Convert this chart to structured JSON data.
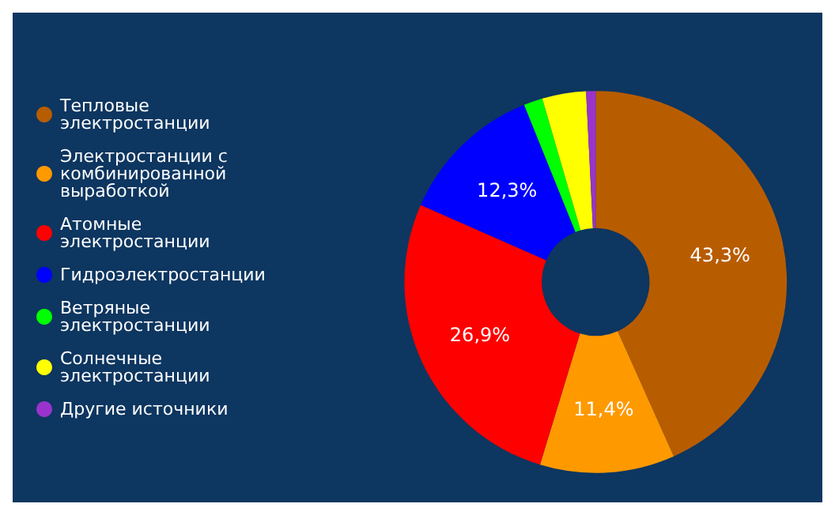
{
  "chart_data": {
    "type": "donut",
    "categories": [
      "Тепловые электростанции",
      "Электростанции с комбинированной выработкой",
      "Атомные электростанции",
      "Гидроэлектростанции",
      "Ветряные электростанции",
      "Солнечные электростанции",
      "Другие источники"
    ],
    "values": [
      43.3,
      11.4,
      26.9,
      12.3,
      1.6,
      3.7,
      0.8
    ],
    "colors": [
      "#b85c00",
      "#ff9900",
      "#ff0000",
      "#0000ff",
      "#00ff00",
      "#ffff00",
      "#9933cc"
    ],
    "value_labels": [
      "43,3%",
      "11,4%",
      "26,9%",
      "12,3%",
      null,
      null,
      null
    ],
    "legend": "left"
  }
}
